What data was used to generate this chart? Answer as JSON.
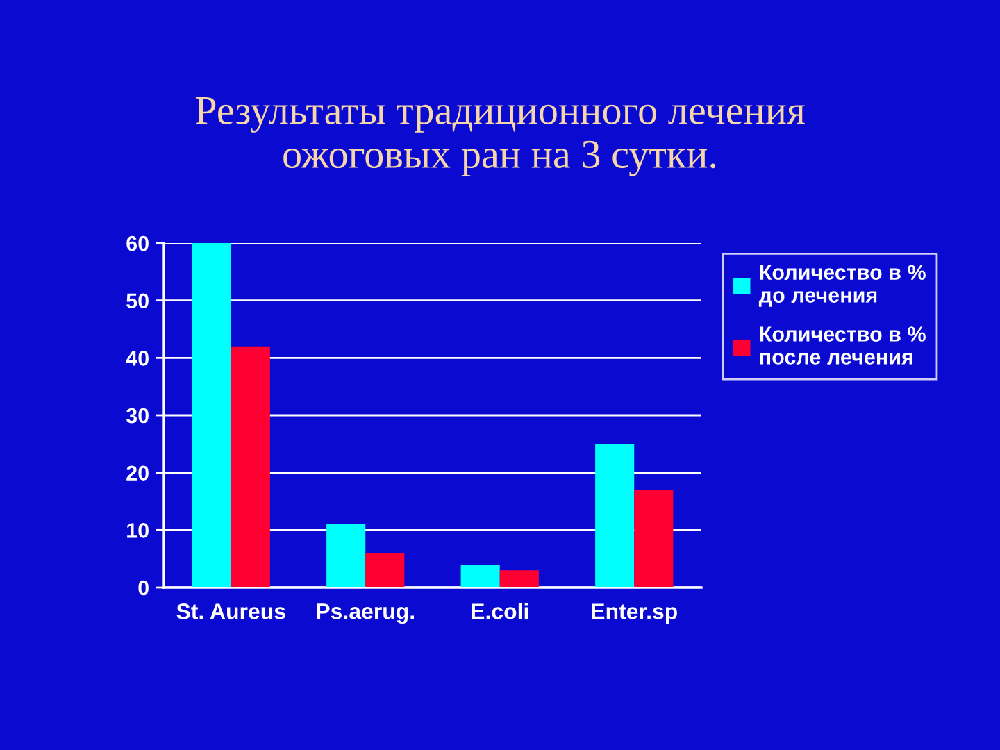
{
  "chart_data": {
    "type": "bar",
    "title": "Результаты традиционного лечения\nожоговых ран на 3 сутки.",
    "categories": [
      "St. Aureus",
      "Ps.aerug.",
      "E.coli",
      "Enter.sp"
    ],
    "series": [
      {
        "name": "Количество в %\nдо лечения",
        "color": "#00ffff",
        "values": [
          60,
          11,
          4,
          25
        ]
      },
      {
        "name": "Количество в %\nпосле лечения",
        "color": "#ff0033",
        "values": [
          42,
          6,
          3,
          17
        ]
      }
    ],
    "ylim": [
      0,
      60
    ],
    "yticks": [
      0,
      10,
      20,
      30,
      40,
      50,
      60
    ],
    "grid": "y",
    "legend": "top right"
  }
}
